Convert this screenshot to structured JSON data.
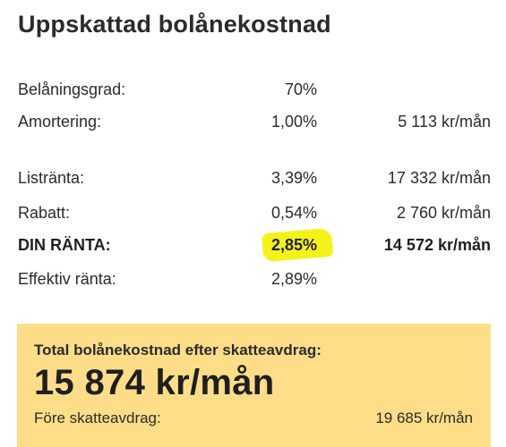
{
  "title": "Uppskattad bolånekostnad",
  "rows": [
    {
      "label": "Belåningsgrad:",
      "pct": "70%",
      "amount": ""
    },
    {
      "label": "Amortering:",
      "pct": "1,00%",
      "amount": "5 113 kr/mån"
    },
    {
      "label": "Listränta:",
      "pct": "3,39%",
      "amount": "17 332 kr/mån"
    },
    {
      "label": "Rabatt:",
      "pct": "0,54%",
      "amount": "2 760 kr/mån"
    },
    {
      "label": "DIN RÄNTA:",
      "pct": "2,85%",
      "amount": "14 572 kr/mån"
    },
    {
      "label": "Effektiv ränta:",
      "pct": "2,89%",
      "amount": ""
    }
  ],
  "summary": {
    "heading": "Total bolånekostnad efter skatteavdrag:",
    "total": "15 874 kr/mån",
    "before_label": "Före skatteavdrag:",
    "before_value": "19 685 kr/mån",
    "background_color": "#fddd88"
  },
  "highlight_color": "#f5f21a"
}
